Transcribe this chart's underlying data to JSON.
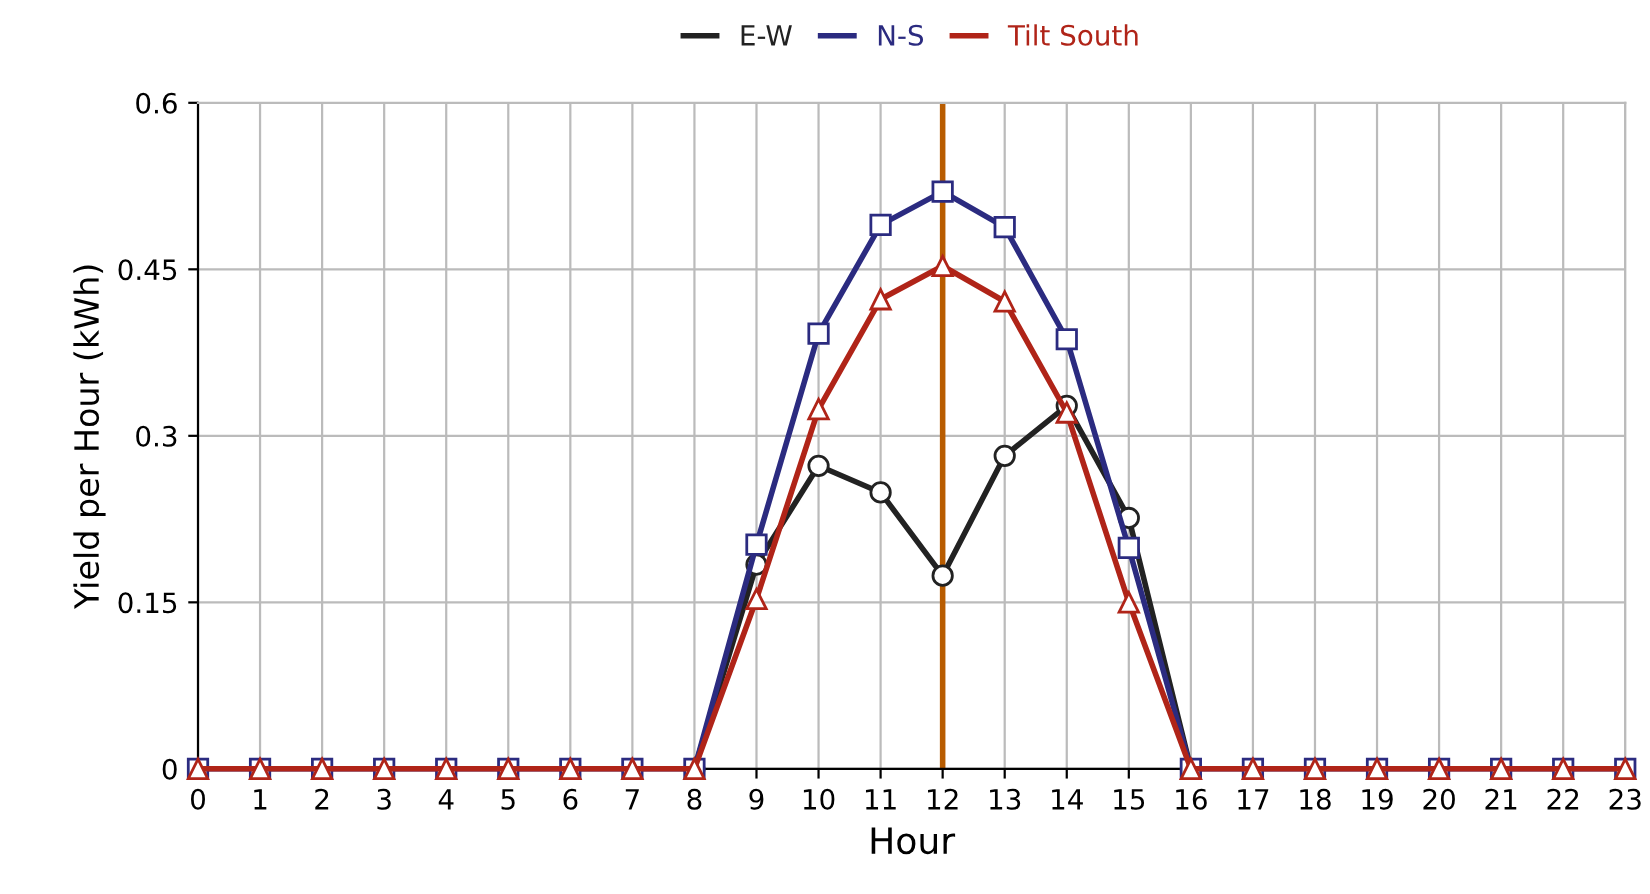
{
  "chart_data": {
    "type": "line",
    "xlabel": "Hour",
    "ylabel": "Yield per Hour (kWh)",
    "x": [
      0,
      1,
      2,
      3,
      4,
      5,
      6,
      7,
      8,
      9,
      10,
      11,
      12,
      13,
      14,
      15,
      16,
      17,
      18,
      19,
      20,
      21,
      22,
      23
    ],
    "series": [
      {
        "name": "E-W",
        "color": "#222222",
        "marker": "circle",
        "values": [
          null,
          null,
          null,
          null,
          null,
          null,
          null,
          null,
          0,
          0.184,
          0.273,
          0.249,
          0.174,
          0.282,
          0.327,
          0.226,
          0,
          null,
          null,
          null,
          null,
          null,
          null,
          null
        ]
      },
      {
        "name": "N-S",
        "color": "#2b2b80",
        "marker": "square",
        "values": [
          0,
          0,
          0,
          0,
          0,
          0,
          0,
          0,
          0,
          0.202,
          0.392,
          0.49,
          0.52,
          0.488,
          0.387,
          0.199,
          0,
          0,
          0,
          0,
          0,
          0,
          0,
          0
        ]
      },
      {
        "name": "Tilt South",
        "color": "#b02418",
        "marker": "triangle",
        "values": [
          0,
          0,
          0,
          0,
          0,
          0,
          0,
          0,
          0,
          0.153,
          0.324,
          0.423,
          0.453,
          0.421,
          0.321,
          0.15,
          0,
          0,
          0,
          0,
          0,
          0,
          0,
          0
        ]
      }
    ],
    "xlim": [
      0,
      23
    ],
    "xticks": [
      0,
      1,
      2,
      3,
      4,
      5,
      6,
      7,
      8,
      9,
      10,
      11,
      12,
      13,
      14,
      15,
      16,
      17,
      18,
      19,
      20,
      21,
      22,
      23
    ],
    "ylim": [
      0,
      0.6
    ],
    "yticks": [
      0,
      0.15,
      0.3,
      0.45,
      0.6
    ],
    "ref_lines": [
      {
        "axis": "x",
        "value": 12,
        "color": "#b85c00"
      }
    ],
    "grid": true,
    "legend": "top"
  }
}
